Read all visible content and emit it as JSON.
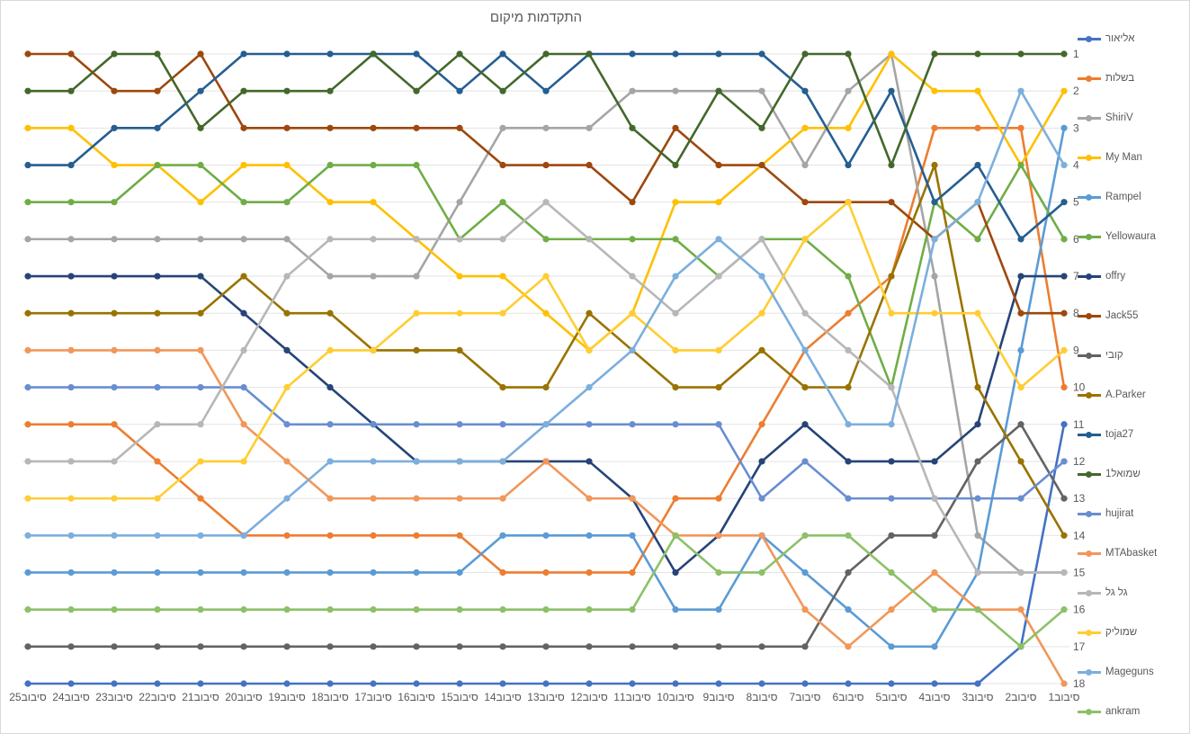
{
  "chart_data": {
    "type": "line",
    "title": "התקדמות מיקום",
    "x_categories": [
      "סיבוב25",
      "סיבוב24",
      "סיבוב23",
      "סיבוב22",
      "סיבוב21",
      "סיבוב20",
      "סיבוב19",
      "סיבוב18",
      "סיבוב17",
      "סיבוב16",
      "סיבוב15",
      "סיבוב14",
      "סיבוב13",
      "סיבוב12",
      "סיבוב11",
      "סיבוב10",
      "סיבוב9",
      "סיבוב8",
      "סיבוב7",
      "סיבוב6",
      "סיבוב5",
      "סיבוב4",
      "סיבוב3",
      "סיבוב2",
      "סיבוב1"
    ],
    "y_ticks": [
      "1",
      "2",
      "3",
      "4",
      "5",
      "6",
      "7",
      "8",
      "9",
      "10",
      "11",
      "12",
      "13",
      "14",
      "15",
      "16",
      "17",
      "18"
    ],
    "y_axis": {
      "min": 1,
      "max": 18,
      "inverted": true,
      "side": "right",
      "grid": true
    },
    "legend_position": "right",
    "grid_color": "#e3e3e3",
    "text_color": "#595959",
    "series": [
      {
        "name": "אליאור",
        "color": "#4472C4",
        "values": [
          18,
          18,
          18,
          18,
          18,
          18,
          18,
          18,
          18,
          18,
          18,
          18,
          18,
          18,
          18,
          18,
          18,
          18,
          18,
          18,
          18,
          18,
          18,
          17,
          11
        ]
      },
      {
        "name": "בשלות",
        "color": "#ED7D31",
        "values": [
          11,
          11,
          11,
          12,
          13,
          14,
          14,
          14,
          14,
          14,
          14,
          15,
          15,
          15,
          15,
          13,
          13,
          11,
          9,
          8,
          7,
          3,
          3,
          3,
          10
        ]
      },
      {
        "name": "ShiriV",
        "color": "#A5A5A5",
        "values": [
          6,
          6,
          6,
          6,
          6,
          6,
          6,
          7,
          7,
          7,
          5,
          3,
          3,
          3,
          2,
          2,
          2,
          2,
          4,
          2,
          1,
          7,
          14,
          15,
          15
        ]
      },
      {
        "name": "My Man",
        "color": "#FFC000",
        "values": [
          3,
          3,
          4,
          4,
          5,
          4,
          4,
          5,
          5,
          6,
          7,
          7,
          8,
          9,
          8,
          5,
          5,
          4,
          3,
          3,
          1,
          2,
          2,
          4,
          2
        ]
      },
      {
        "name": "Rampel",
        "color": "#5B9BD5",
        "values": [
          15,
          15,
          15,
          15,
          15,
          15,
          15,
          15,
          15,
          15,
          15,
          14,
          14,
          14,
          14,
          16,
          16,
          14,
          15,
          16,
          17,
          17,
          15,
          9,
          3
        ]
      },
      {
        "name": "Yellowaura",
        "color": "#70AD47",
        "values": [
          5,
          5,
          5,
          4,
          4,
          5,
          5,
          4,
          4,
          4,
          6,
          5,
          6,
          6,
          6,
          6,
          7,
          6,
          6,
          7,
          10,
          5,
          6,
          4,
          6
        ]
      },
      {
        "name": "offry",
        "color": "#264478",
        "values": [
          7,
          7,
          7,
          7,
          7,
          8,
          9,
          10,
          11,
          12,
          12,
          12,
          12,
          12,
          13,
          15,
          14,
          12,
          11,
          12,
          12,
          12,
          11,
          7,
          7
        ]
      },
      {
        "name": "Jack55",
        "color": "#9E480E",
        "values": [
          1,
          1,
          2,
          2,
          1,
          3,
          3,
          3,
          3,
          3,
          3,
          4,
          4,
          4,
          5,
          3,
          4,
          4,
          5,
          5,
          5,
          6,
          5,
          8,
          8
        ]
      },
      {
        "name": "קובי",
        "color": "#636363",
        "values": [
          17,
          17,
          17,
          17,
          17,
          17,
          17,
          17,
          17,
          17,
          17,
          17,
          17,
          17,
          17,
          17,
          17,
          17,
          17,
          15,
          14,
          14,
          12,
          11,
          13
        ]
      },
      {
        "name": "A.Parker",
        "color": "#997300",
        "values": [
          8,
          8,
          8,
          8,
          8,
          7,
          8,
          8,
          9,
          9,
          9,
          10,
          10,
          8,
          9,
          10,
          10,
          9,
          10,
          10,
          7,
          4,
          10,
          12,
          14
        ]
      },
      {
        "name": "toja27",
        "color": "#255E91",
        "values": [
          4,
          4,
          3,
          3,
          2,
          1,
          1,
          1,
          1,
          1,
          2,
          1,
          2,
          1,
          1,
          1,
          1,
          1,
          2,
          4,
          2,
          5,
          4,
          6,
          5
        ]
      },
      {
        "name": "שמואל1",
        "color": "#43682B",
        "values": [
          2,
          2,
          1,
          1,
          3,
          2,
          2,
          2,
          1,
          2,
          1,
          2,
          1,
          1,
          3,
          4,
          2,
          3,
          1,
          1,
          4,
          1,
          1,
          1,
          1
        ]
      },
      {
        "name": "hujirat",
        "color": "#698ED0",
        "values": [
          10,
          10,
          10,
          10,
          10,
          10,
          11,
          11,
          11,
          11,
          11,
          11,
          11,
          11,
          11,
          11,
          11,
          13,
          12,
          13,
          13,
          13,
          13,
          13,
          12
        ]
      },
      {
        "name": "MTAbasket",
        "color": "#F1975A",
        "values": [
          9,
          9,
          9,
          9,
          9,
          11,
          12,
          13,
          13,
          13,
          13,
          13,
          12,
          13,
          13,
          14,
          14,
          14,
          16,
          17,
          16,
          15,
          16,
          16,
          18
        ]
      },
      {
        "name": "גל גל",
        "color": "#B7B7B7",
        "values": [
          12,
          12,
          12,
          11,
          11,
          9,
          7,
          6,
          6,
          6,
          6,
          6,
          5,
          6,
          7,
          8,
          7,
          6,
          8,
          9,
          10,
          13,
          15,
          15,
          15
        ]
      },
      {
        "name": "שמוליק",
        "color": "#FFCD33",
        "values": [
          13,
          13,
          13,
          13,
          12,
          12,
          10,
          9,
          9,
          8,
          8,
          8,
          7,
          9,
          8,
          9,
          9,
          8,
          6,
          5,
          8,
          8,
          8,
          10,
          9
        ]
      },
      {
        "name": "Mageguns",
        "color": "#7CAFDD",
        "values": [
          14,
          14,
          14,
          14,
          14,
          14,
          13,
          12,
          12,
          12,
          12,
          12,
          11,
          10,
          9,
          7,
          6,
          7,
          9,
          11,
          11,
          6,
          5,
          2,
          4
        ]
      },
      {
        "name": "ankram",
        "color": "#8CC168",
        "values": [
          16,
          16,
          16,
          16,
          16,
          16,
          16,
          16,
          16,
          16,
          16,
          16,
          16,
          16,
          16,
          14,
          15,
          15,
          14,
          14,
          15,
          16,
          16,
          17,
          16
        ]
      }
    ]
  }
}
